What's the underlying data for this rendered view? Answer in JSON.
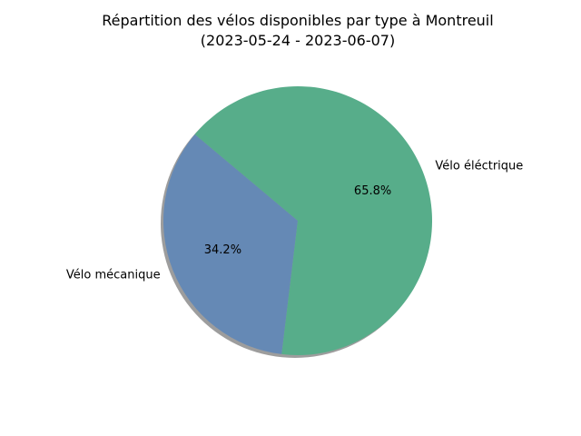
{
  "chart_data": {
    "type": "pie",
    "title_line1": "Répartition des vélos disponibles par type à Montreuil",
    "title_line2": "(2023-05-24 - 2023-06-07)",
    "slices": [
      {
        "label": "Vélo mécanique",
        "value": 34.2,
        "pct_label": "34.2%",
        "color": "#6589b5"
      },
      {
        "label": "Vélo éléctrique",
        "value": 65.8,
        "pct_label": "65.8%",
        "color": "#57ad8a"
      }
    ],
    "start_angle_deg": 140,
    "shadow": true,
    "legend": "none"
  }
}
